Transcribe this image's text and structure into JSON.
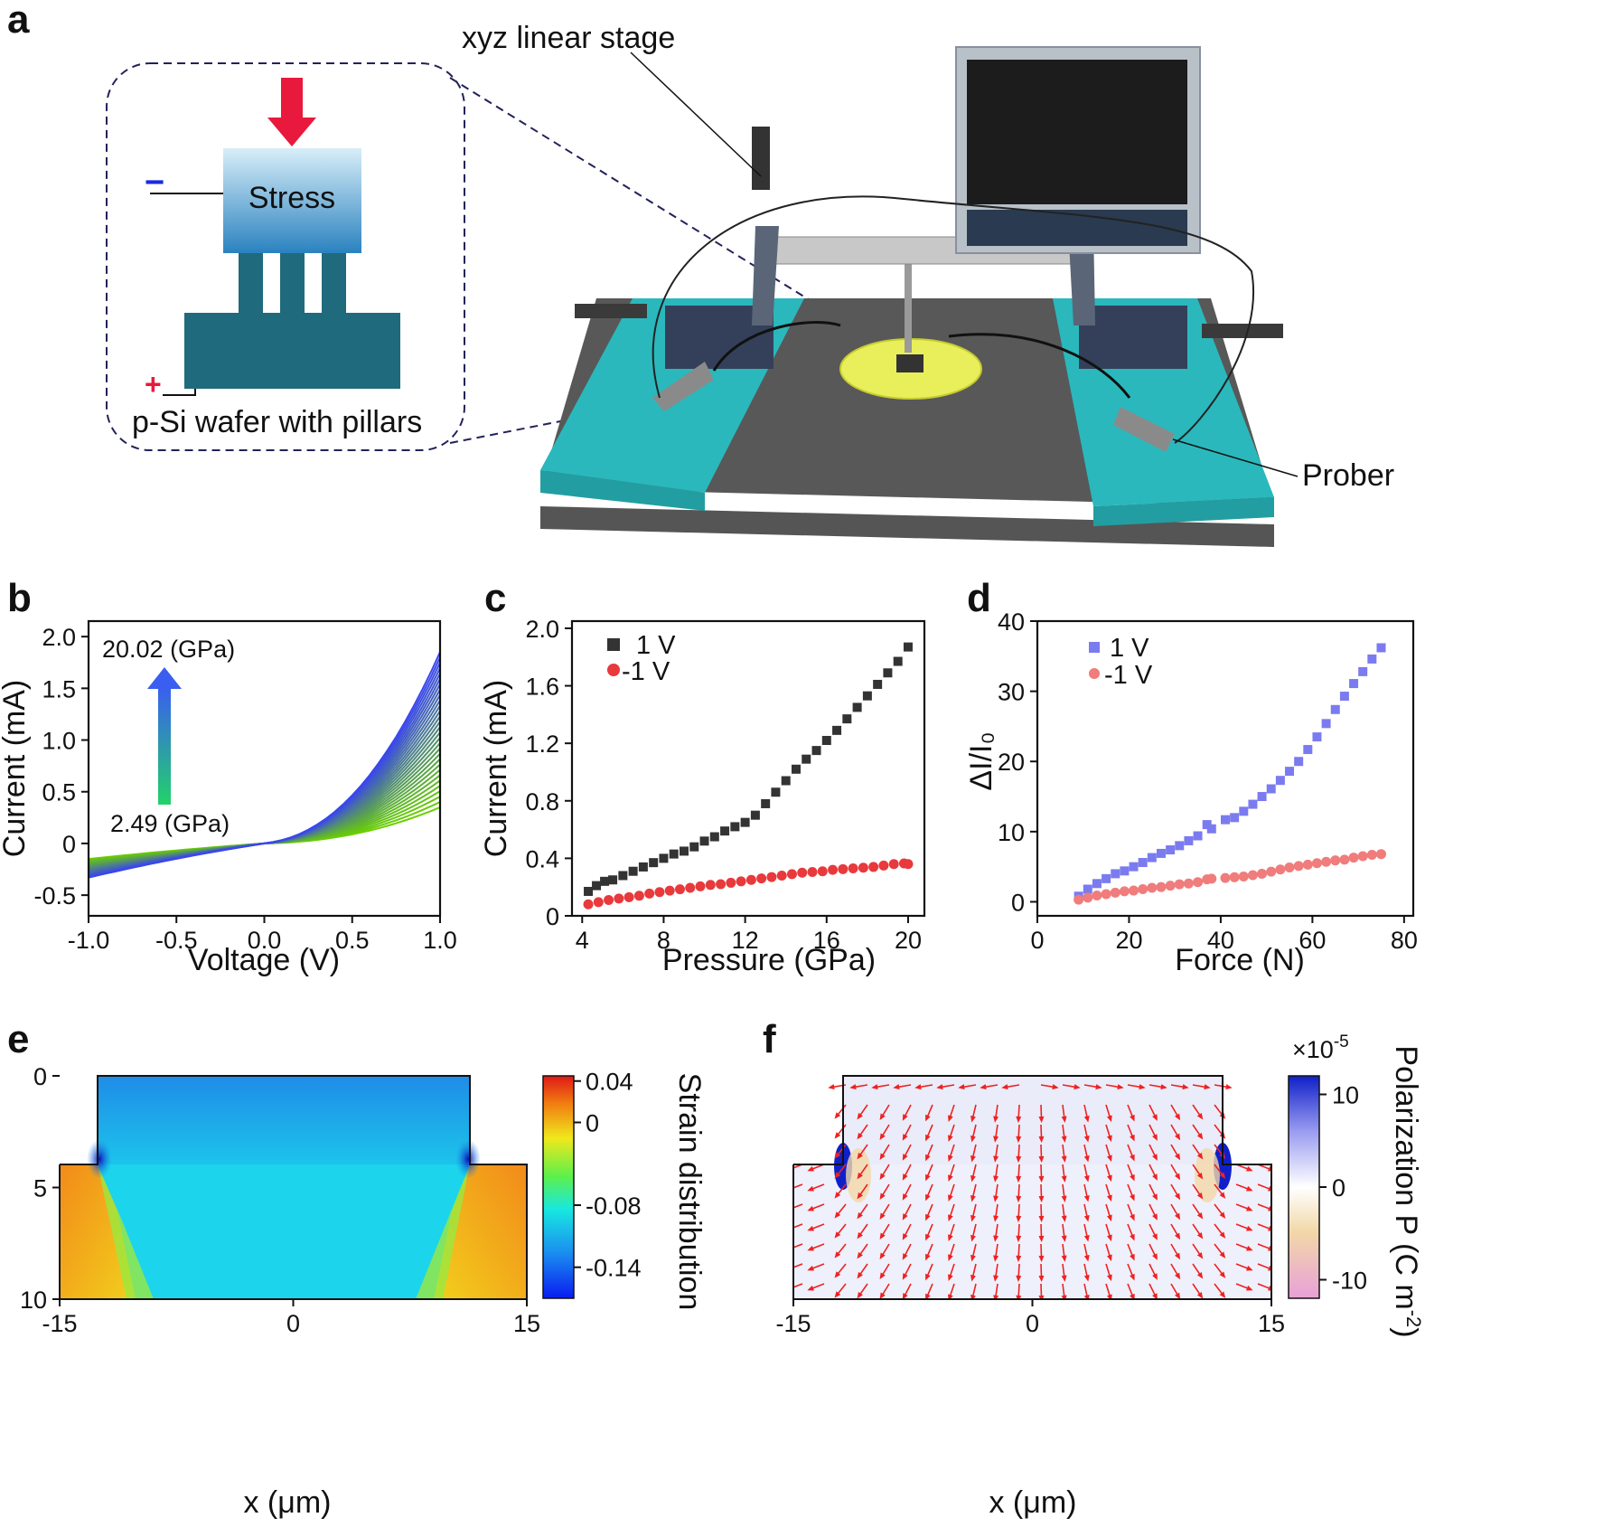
{
  "panels": {
    "a": "a",
    "b": "b",
    "c": "c",
    "d": "d",
    "e": "e",
    "f": "f"
  },
  "schematic": {
    "stage_label": "xyz linear stage",
    "stress_label": "Stress",
    "wafer_label": "p-Si wafer with pillars",
    "prober_label": "Prober",
    "minus": "−",
    "plus": "+"
  },
  "chart_data": [
    {
      "id": "b",
      "type": "line",
      "xlabel": "Voltage (V)",
      "ylabel": "Current (mA)",
      "xlim": [
        -1.0,
        1.0
      ],
      "ylim": [
        -0.7,
        2.15
      ],
      "xticks": [
        "-1.0",
        "-0.5",
        "0.0",
        "0.5",
        "1.0"
      ],
      "xtick_values": [
        -1.0,
        -0.5,
        0.0,
        0.5,
        1.0
      ],
      "yticks": [
        "-0.5",
        "0",
        "0.5",
        "1.0",
        "1.5",
        "2.0"
      ],
      "ytick_values": [
        -0.5,
        0,
        0.5,
        1.0,
        1.5,
        2.0
      ],
      "annot_top": "20.02 (GPa)",
      "annot_bottom": "2.49 (GPa)",
      "series_count": 30,
      "i_at_plus1_range": [
        0.35,
        1.85
      ],
      "i_at_minus1_range": [
        -0.15,
        -0.33
      ],
      "color_low": "#6ad000",
      "color_high": "#3a46ee"
    },
    {
      "id": "c",
      "type": "scatter",
      "xlabel": "Pressure (GPa)",
      "ylabel": "Current (mA)",
      "xlim": [
        3.5,
        20.8
      ],
      "ylim": [
        0,
        2.05
      ],
      "xticks": [
        "4",
        "8",
        "12",
        "16",
        "20"
      ],
      "xtick_values": [
        4,
        8,
        12,
        16,
        20
      ],
      "yticks": [
        "0",
        "0.4",
        "0.8",
        "1.2",
        "1.6",
        "2.0"
      ],
      "ytick_values": [
        0,
        0.4,
        0.8,
        1.2,
        1.6,
        2.0
      ],
      "series": [
        {
          "name": "1 V",
          "marker": "square",
          "color": "#333333",
          "x": [
            4.3,
            4.7,
            5.1,
            5.5,
            6.0,
            6.5,
            7.0,
            7.5,
            8.0,
            8.5,
            9.0,
            9.5,
            10.0,
            10.5,
            11.0,
            11.5,
            12.0,
            12.5,
            13.0,
            13.5,
            14.0,
            14.5,
            15.0,
            15.5,
            16.0,
            16.5,
            17.0,
            17.5,
            18.0,
            18.5,
            19.0,
            19.5,
            20.0
          ],
          "y": [
            0.17,
            0.21,
            0.24,
            0.25,
            0.28,
            0.31,
            0.34,
            0.37,
            0.4,
            0.43,
            0.45,
            0.48,
            0.52,
            0.55,
            0.59,
            0.62,
            0.65,
            0.7,
            0.78,
            0.86,
            0.94,
            1.02,
            1.09,
            1.15,
            1.22,
            1.29,
            1.37,
            1.45,
            1.53,
            1.61,
            1.69,
            1.77,
            1.87
          ]
        },
        {
          "name": "-1 V",
          "marker": "circle",
          "color": "#e8393c",
          "x": [
            4.3,
            4.8,
            5.3,
            5.8,
            6.3,
            6.8,
            7.3,
            7.8,
            8.3,
            8.8,
            9.3,
            9.8,
            10.3,
            10.8,
            11.3,
            11.8,
            12.3,
            12.8,
            13.3,
            13.8,
            14.3,
            14.8,
            15.3,
            15.8,
            16.3,
            16.8,
            17.3,
            17.8,
            18.3,
            18.8,
            19.3,
            19.8,
            20.0
          ],
          "y": [
            0.08,
            0.095,
            0.11,
            0.12,
            0.13,
            0.14,
            0.155,
            0.165,
            0.175,
            0.185,
            0.195,
            0.205,
            0.215,
            0.22,
            0.23,
            0.24,
            0.25,
            0.26,
            0.27,
            0.28,
            0.29,
            0.3,
            0.305,
            0.31,
            0.32,
            0.325,
            0.33,
            0.335,
            0.34,
            0.35,
            0.36,
            0.365,
            0.36
          ]
        }
      ]
    },
    {
      "id": "d",
      "type": "scatter",
      "xlabel": "Force (N)",
      "ylabel": "ΔI/I₀",
      "xlim": [
        0,
        82
      ],
      "ylim": [
        -2,
        40
      ],
      "xticks": [
        "0",
        "20",
        "40",
        "60",
        "80"
      ],
      "xtick_values": [
        0,
        20,
        40,
        60,
        80
      ],
      "yticks": [
        "0",
        "10",
        "20",
        "30",
        "40"
      ],
      "ytick_values": [
        0,
        10,
        20,
        30,
        40
      ],
      "series": [
        {
          "name": " 1 V",
          "marker": "square",
          "color": "#7b7bf0",
          "x": [
            9,
            11,
            13,
            15,
            17,
            19,
            21,
            23,
            25,
            27,
            29,
            31,
            33,
            35,
            37,
            38,
            41,
            43,
            45,
            47,
            49,
            51,
            53,
            55,
            57,
            59,
            61,
            63,
            65,
            67,
            69,
            71,
            73,
            75
          ],
          "y": [
            0.8,
            1.8,
            2.6,
            3.3,
            4.0,
            4.4,
            5.0,
            5.6,
            6.3,
            6.9,
            7.4,
            8.0,
            8.7,
            9.4,
            11.0,
            10.4,
            11.7,
            12.0,
            12.9,
            13.9,
            15.0,
            16.1,
            17.3,
            18.6,
            20.0,
            21.7,
            23.5,
            25.4,
            27.4,
            29.3,
            31.1,
            32.8,
            34.6,
            36.2
          ]
        },
        {
          "name": " -1 V",
          "marker": "circle",
          "color": "#f07c7c",
          "x": [
            9,
            11,
            13,
            15,
            17,
            19,
            21,
            23,
            25,
            27,
            29,
            31,
            33,
            35,
            37,
            38,
            41,
            43,
            45,
            47,
            49,
            51,
            53,
            55,
            57,
            59,
            61,
            63,
            65,
            67,
            69,
            71,
            73,
            75
          ],
          "y": [
            0.3,
            0.6,
            0.9,
            1.1,
            1.3,
            1.5,
            1.6,
            1.8,
            2.0,
            2.1,
            2.3,
            2.5,
            2.6,
            2.8,
            3.2,
            3.3,
            3.4,
            3.5,
            3.6,
            3.8,
            4.0,
            4.3,
            4.6,
            4.9,
            5.1,
            5.3,
            5.5,
            5.7,
            5.9,
            6.0,
            6.3,
            6.5,
            6.7,
            6.8
          ]
        }
      ]
    },
    {
      "id": "e",
      "type": "heatmap",
      "xlabel": "x (μm)",
      "xticks": [
        "-15",
        "0",
        "15"
      ],
      "xtick_values": [
        -15,
        0,
        15
      ],
      "yticks": [
        "0",
        "5",
        "10"
      ],
      "ytick_values": [
        0,
        5,
        10
      ],
      "xlim": [
        -15,
        15
      ],
      "ylim": [
        0,
        10
      ],
      "colorbar_label": "Strain distribution",
      "colorbar_ticks": [
        "0.04",
        "0",
        "-0.08",
        "-0.14"
      ],
      "colorbar_values": [
        0.04,
        0,
        -0.08,
        -0.14
      ],
      "colorbar_range": [
        -0.17,
        0.045
      ]
    },
    {
      "id": "f",
      "type": "heatmap",
      "xlabel": "x (μm)",
      "xticks": [
        "-15",
        "0",
        "15"
      ],
      "xtick_values": [
        -15,
        0,
        15
      ],
      "xlim": [
        -15,
        15
      ],
      "scale_label": "×10",
      "scale_exp": "-5",
      "colorbar_label": "Polarization  P (C m",
      "colorbar_exp": "-2",
      "colorbar_close": ")",
      "colorbar_ticks": [
        "10",
        "0",
        "-10"
      ],
      "colorbar_values": [
        10,
        0,
        -10
      ],
      "colorbar_range": [
        -12,
        12
      ],
      "arrow_color": "#ee2222"
    }
  ],
  "colors": {
    "teal": "#2ab8bc",
    "dark_floor": "#575757",
    "arrow_red": "#e8193c"
  }
}
